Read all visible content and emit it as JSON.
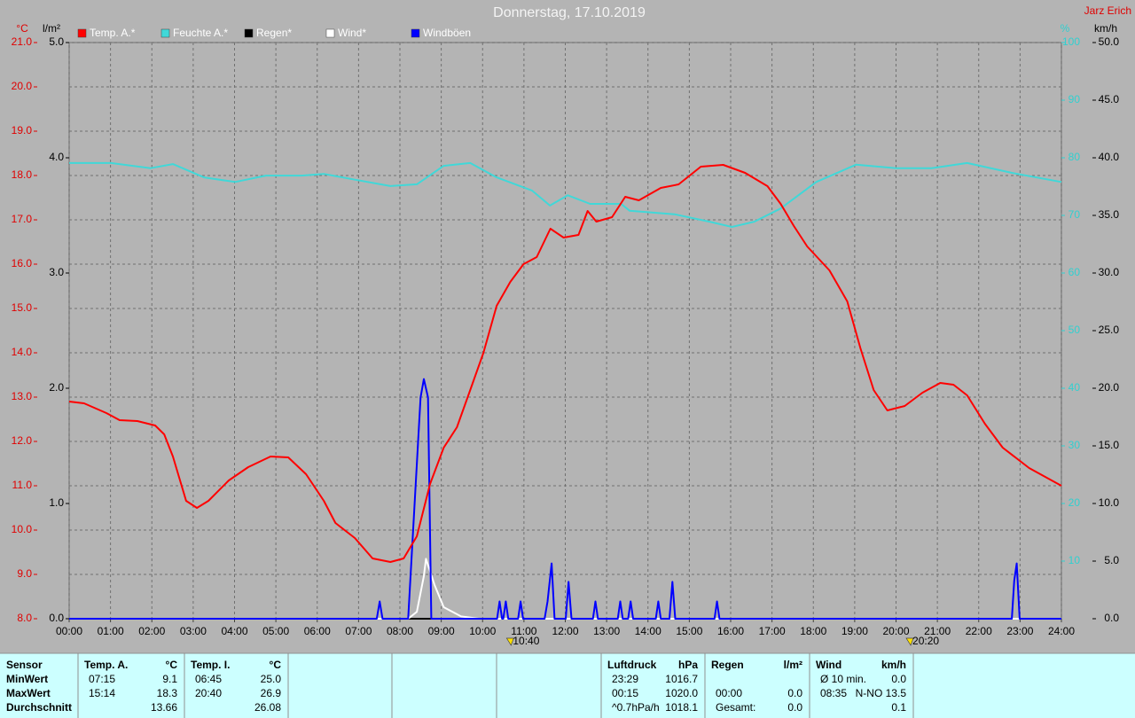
{
  "chart_data": {
    "type": "line",
    "title": "Donnerstag, 17.10.2019",
    "author": "Jarz Erich",
    "y_label": "°C",
    "y3_label": "l/m²",
    "y4_label": "%",
    "y2_label": "km/h",
    "grid": true,
    "xlim": [
      0,
      24
    ],
    "xticks": [
      {
        "value": 0,
        "label": "00:00"
      },
      {
        "value": 1,
        "label": "01:00"
      },
      {
        "value": 2,
        "label": "02:00"
      },
      {
        "value": 3,
        "label": "03:00"
      },
      {
        "value": 4,
        "label": "04:00"
      },
      {
        "value": 5,
        "label": "05:00"
      },
      {
        "value": 6,
        "label": "06:00"
      },
      {
        "value": 7,
        "label": "07:00"
      },
      {
        "value": 8,
        "label": "08:00"
      },
      {
        "value": 9,
        "label": "09:00"
      },
      {
        "value": 10,
        "label": "10:00"
      },
      {
        "value": 11,
        "label": "11:00"
      },
      {
        "value": 12,
        "label": "12:00"
      },
      {
        "value": 13,
        "label": "13:00"
      },
      {
        "value": 14,
        "label": "14:00"
      },
      {
        "value": 15,
        "label": "15:00"
      },
      {
        "value": 16,
        "label": "16:00"
      },
      {
        "value": 17,
        "label": "17:00"
      },
      {
        "value": 18,
        "label": "18:00"
      },
      {
        "value": 19,
        "label": "19:00"
      },
      {
        "value": 20,
        "label": "20:00"
      },
      {
        "value": 21,
        "label": "21:00"
      },
      {
        "value": 22,
        "label": "22:00"
      },
      {
        "value": 23,
        "label": "23:00"
      },
      {
        "value": 24,
        "label": "24:00"
      }
    ],
    "ylim": [
      8,
      21
    ],
    "yticks": [
      {
        "value": 8,
        "label": "8.0"
      },
      {
        "value": 9,
        "label": "9.0"
      },
      {
        "value": 10,
        "label": "10.0"
      },
      {
        "value": 11,
        "label": "11.0"
      },
      {
        "value": 12,
        "label": "12.0"
      },
      {
        "value": 13,
        "label": "13.0"
      },
      {
        "value": 14,
        "label": "14.0"
      },
      {
        "value": 15,
        "label": "15.0"
      },
      {
        "value": 16,
        "label": "16.0"
      },
      {
        "value": 17,
        "label": "17.0"
      },
      {
        "value": 18,
        "label": "18.0"
      },
      {
        "value": 19,
        "label": "19.0"
      },
      {
        "value": 20,
        "label": "20.0"
      },
      {
        "value": 21,
        "label": "21.0"
      }
    ],
    "y3lim": [
      0,
      5
    ],
    "y3ticks": [
      {
        "value": 0,
        "label": "0.0"
      },
      {
        "value": 1,
        "label": "1.0"
      },
      {
        "value": 2,
        "label": "2.0"
      },
      {
        "value": 3,
        "label": "3.0"
      },
      {
        "value": 4,
        "label": "4.0"
      },
      {
        "value": 5,
        "label": "5.0"
      }
    ],
    "y4lim": [
      0,
      100
    ],
    "y4ticks": [
      10,
      20,
      30,
      40,
      50,
      60,
      70,
      80,
      90,
      100
    ],
    "y2lim": [
      0,
      50
    ],
    "y2ticks": [
      {
        "value": 0,
        "label": "0.0"
      },
      {
        "value": 5,
        "label": "5.0"
      },
      {
        "value": 10,
        "label": "10.0"
      },
      {
        "value": 15,
        "label": "15.0"
      },
      {
        "value": 20,
        "label": "20.0"
      },
      {
        "value": 25,
        "label": "25.0"
      },
      {
        "value": 30,
        "label": "30.0"
      },
      {
        "value": 35,
        "label": "35.0"
      },
      {
        "value": 40,
        "label": "40.0"
      },
      {
        "value": 45,
        "label": "45.0"
      },
      {
        "value": 50,
        "label": "50.0"
      }
    ],
    "series": [
      {
        "name": "Temp. A.*",
        "color": "#ff0000",
        "axis": "y",
        "x": [
          0,
          0.36,
          0.9,
          1.22,
          1.65,
          2.08,
          2.3,
          2.51,
          2.83,
          3.09,
          3.37,
          3.86,
          4.33,
          4.87,
          5.3,
          5.73,
          6.16,
          6.44,
          6.91,
          7.34,
          7.77,
          8.09,
          8.41,
          8.73,
          9.06,
          9.38,
          9.7,
          10.02,
          10.34,
          10.67,
          10.99,
          11.31,
          11.64,
          11.96,
          12.32,
          12.54,
          12.75,
          13.13,
          13.45,
          13.78,
          14.31,
          14.74,
          15.28,
          15.82,
          16.35,
          16.89,
          17.21,
          17.53,
          17.85,
          18.39,
          18.82,
          19.14,
          19.46,
          19.79,
          20.21,
          20.64,
          21.07,
          21.39,
          21.72,
          22.15,
          22.58,
          23.22,
          24
        ],
        "values": [
          12.9,
          12.86,
          12.64,
          12.48,
          12.46,
          12.36,
          12.16,
          11.66,
          10.66,
          10.5,
          10.66,
          11.12,
          11.42,
          11.66,
          11.64,
          11.26,
          10.66,
          10.16,
          9.82,
          9.36,
          9.28,
          9.36,
          9.86,
          11.04,
          11.86,
          12.32,
          13.16,
          14.0,
          15.06,
          15.6,
          16.0,
          16.16,
          16.8,
          16.6,
          16.66,
          17.2,
          16.96,
          17.06,
          17.52,
          17.44,
          17.72,
          17.8,
          18.2,
          18.24,
          18.06,
          17.76,
          17.36,
          16.86,
          16.4,
          15.86,
          15.16,
          14.1,
          13.16,
          12.7,
          12.8,
          13.1,
          13.32,
          13.28,
          13.04,
          12.4,
          11.86,
          11.4,
          11.0
        ]
      },
      {
        "name": "Feuchte A.*",
        "color": "#40d8d8",
        "axis": "y4",
        "x": [
          0,
          1.01,
          1.97,
          2.51,
          3.26,
          4.01,
          4.76,
          5.62,
          6.16,
          6.91,
          7.77,
          8.41,
          9.06,
          9.7,
          10.34,
          11.2,
          11.63,
          12.06,
          12.6,
          13.35,
          13.56,
          14.64,
          15.49,
          16.03,
          16.57,
          17.21,
          18.07,
          19.03,
          20.0,
          20.86,
          21.72,
          22.79,
          24
        ],
        "values": [
          79.1,
          79.1,
          78.2,
          78.9,
          76.6,
          75.8,
          76.9,
          76.9,
          77.2,
          76.2,
          75.1,
          75.4,
          78.6,
          79.1,
          76.6,
          74.3,
          71.7,
          73.5,
          72.0,
          72.0,
          70.8,
          70.2,
          68.9,
          68.0,
          68.9,
          71.2,
          75.8,
          78.8,
          78.2,
          78.2,
          79.1,
          77.4,
          75.8
        ]
      },
      {
        "name": "Regen*",
        "color": "#000000",
        "axis": "y3",
        "x": [
          0,
          24
        ],
        "values": [
          0,
          0
        ]
      },
      {
        "name": "Wind*",
        "color": "#ffffff",
        "axis": "y2",
        "x": [
          0,
          8.2,
          8.41,
          8.58,
          8.63,
          8.84,
          9.06,
          9.48,
          9.91,
          24
        ],
        "values": [
          0,
          0,
          0.6,
          3.7,
          5.2,
          2.9,
          1.0,
          0.2,
          0,
          0
        ]
      },
      {
        "name": "Windböen",
        "color": "#0000ff",
        "axis": "y2",
        "x": [
          0,
          7.44,
          7.51,
          7.58,
          8.2,
          8.5,
          8.58,
          8.68,
          8.76,
          10.35,
          10.41,
          10.47,
          10.5,
          10.56,
          10.62,
          10.86,
          10.92,
          10.98,
          11.5,
          11.57,
          11.67,
          11.74,
          12.01,
          12.08,
          12.15,
          12.67,
          12.73,
          12.79,
          13.27,
          13.33,
          13.39,
          13.52,
          13.58,
          13.64,
          14.19,
          14.25,
          14.31,
          14.52,
          14.59,
          14.66,
          15.61,
          15.67,
          15.73,
          22.8,
          22.86,
          22.92,
          22.99,
          24
        ],
        "values": [
          0,
          0,
          1.5,
          0,
          0,
          19.2,
          20.8,
          19.2,
          0,
          0,
          1.5,
          0,
          0,
          1.5,
          0,
          0,
          1.5,
          0,
          0,
          1.5,
          4.8,
          0,
          0,
          3.2,
          0,
          0,
          1.5,
          0,
          0,
          1.5,
          0,
          0,
          1.5,
          0,
          0,
          1.5,
          0,
          0,
          3.2,
          0,
          0,
          1.5,
          0,
          0,
          3.3,
          4.8,
          0,
          0
        ]
      }
    ],
    "annotations": [
      {
        "x": 10.667,
        "label": "10:40"
      },
      {
        "x": 20.333,
        "label": "20:20"
      }
    ]
  },
  "table": {
    "sections": [
      {
        "header": [
          "Sensor",
          null
        ],
        "rows": [
          [
            "MinWert",
            null
          ],
          [
            "MaxWert",
            null
          ],
          [
            "Durchschnitt",
            null
          ]
        ]
      },
      {
        "header": [
          "Temp. A.",
          "°C"
        ],
        "rows": [
          [
            "07:15",
            "9.1"
          ],
          [
            "15:14",
            "18.3"
          ],
          [
            null,
            "13.66"
          ]
        ]
      },
      {
        "header": [
          "Temp. I.",
          "°C"
        ],
        "rows": [
          [
            "06:45",
            "25.0"
          ],
          [
            "20:40",
            "26.9"
          ],
          [
            null,
            "26.08"
          ]
        ]
      },
      {
        "header": [
          "Luftdruck",
          "hPa"
        ],
        "rows": [
          [
            "23:29",
            "1016.7"
          ],
          [
            "00:15",
            "1020.0"
          ],
          [
            "^0.7hPa/h",
            "1018.1"
          ]
        ]
      },
      {
        "header": [
          "Regen",
          "l/m²"
        ],
        "rows": [
          [
            null,
            null
          ],
          [
            "00:00",
            "0.0"
          ],
          [
            "Gesamt:",
            "0.0"
          ]
        ]
      },
      {
        "header": [
          "Wind",
          "km/h"
        ],
        "rows": [
          [
            "Ø 10 min.",
            "0.0"
          ],
          [
            "08:35",
            "N-NO 13.5"
          ],
          [
            null,
            "0.1"
          ]
        ]
      }
    ]
  }
}
